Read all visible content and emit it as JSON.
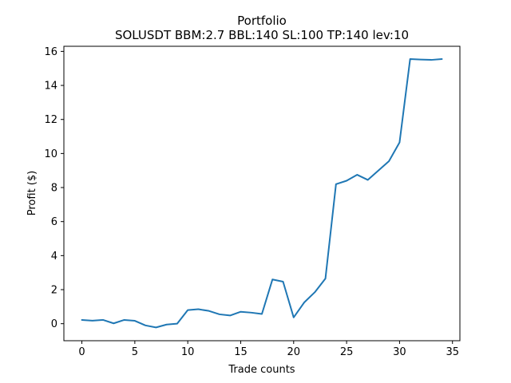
{
  "chart_data": {
    "type": "line",
    "title": "Portfolio",
    "subtitle": "SOLUSDT BBM:2.7 BBL:140 SL:100 TP:140 lev:10",
    "xlabel": "Trade counts",
    "ylabel": "Profit ($)",
    "xlim": [
      -1.7,
      35.7
    ],
    "ylim": [
      -1.0,
      16.3
    ],
    "xticks": [
      0,
      5,
      10,
      15,
      20,
      25,
      30,
      35
    ],
    "yticks": [
      0,
      2,
      4,
      6,
      8,
      10,
      12,
      14,
      16
    ],
    "grid": false,
    "series": [
      {
        "color": "#1f77b4",
        "x": [
          0,
          1,
          2,
          3,
          4,
          5,
          6,
          7,
          8,
          9,
          10,
          11,
          12,
          13,
          14,
          15,
          16,
          17,
          18,
          19,
          20,
          21,
          22,
          23,
          24,
          25,
          26,
          27,
          28,
          29,
          30,
          31,
          32,
          33,
          34
        ],
        "y": [
          0.22,
          0.18,
          0.22,
          0.02,
          0.22,
          0.17,
          -0.1,
          -0.22,
          -0.05,
          0.0,
          0.8,
          0.85,
          0.75,
          0.55,
          0.48,
          0.7,
          0.65,
          0.57,
          2.6,
          2.47,
          0.37,
          1.25,
          1.85,
          2.65,
          8.2,
          8.4,
          8.75,
          8.45,
          9.0,
          9.55,
          10.65,
          15.55,
          15.52,
          15.5,
          15.55
        ]
      }
    ]
  }
}
